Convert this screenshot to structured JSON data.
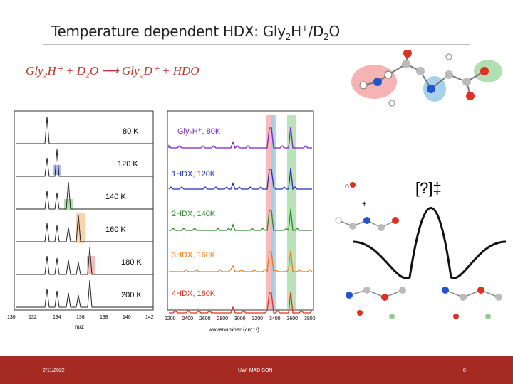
{
  "title": {
    "text": "Temperature dependent HDX:  Gly",
    "sub1": "2",
    "mid": "H",
    "sup": "+",
    "slash": "/D",
    "sub2": "2",
    "end": "O"
  },
  "reaction": "Gly₂H⁺ + D₂O ⟶ Gly₂D⁺ + HDO",
  "mass_panel": {
    "temperatures": [
      "80 K",
      "120 K",
      "140 K",
      "160 K",
      "180 K",
      "200 K"
    ],
    "x_ticks": [
      "130",
      "132",
      "134",
      "136",
      "138",
      "140",
      "142"
    ],
    "x_label": "m/z"
  },
  "ir_panel": {
    "labels": [
      "Gly₂H⁺, 80K",
      "1HDX, 120K",
      "2HDX, 140K",
      "3HDX, 160K",
      "4HDX, 180K"
    ],
    "x_ticks": [
      "2200",
      "2400",
      "2600",
      "2800",
      "3000",
      "3200",
      "3400",
      "3600",
      "3800"
    ],
    "x_label": "wavenumber (cm⁻¹)",
    "trace_colors": [
      "#7b22c8",
      "#1f2fb8",
      "#2d8a24",
      "#f07a1a",
      "#e03020"
    ]
  },
  "ts_label": "[?]‡",
  "plus_sign": "+",
  "footer": {
    "date": "2/11/2022",
    "org": "UW- MADISON",
    "page": "8"
  }
}
